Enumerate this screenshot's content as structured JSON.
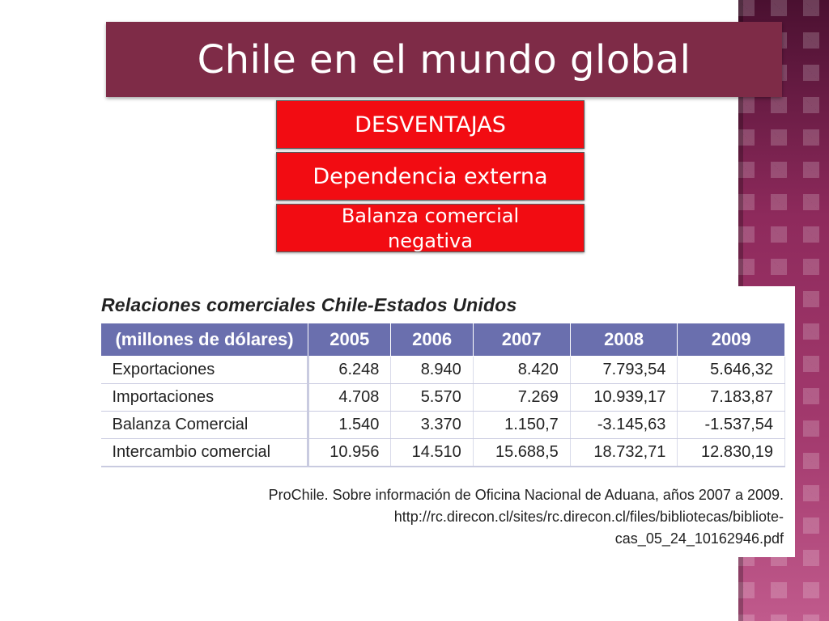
{
  "slide": {
    "title": "Chile en el mundo global",
    "boxes": [
      "DESVENTAJAS",
      "Dependencia externa"
    ],
    "box3_lines": [
      "Balanza comercial",
      "negativa"
    ]
  },
  "table": {
    "title": "Relaciones comerciales Chile-Estados Unidos",
    "headers": [
      "(millones de dólares)",
      "2005",
      "2006",
      "2007",
      "2008",
      "2009"
    ],
    "rows": [
      [
        "Exportaciones",
        "6.248",
        "8.940",
        "8.420",
        "7.793,54",
        "5.646,32"
      ],
      [
        "Importaciones",
        "4.708",
        "5.570",
        "7.269",
        "10.939,17",
        "7.183,87"
      ],
      [
        "Balanza Comercial",
        "1.540",
        "3.370",
        "1.150,7",
        "-3.145,63",
        "-1.537,54"
      ],
      [
        "Intercambio comercial",
        "10.956",
        "14.510",
        "15.688,5",
        "18.732,71",
        "12.830,19"
      ]
    ],
    "source_lines": [
      "ProChile. Sobre información de Oficina Nacional de Aduana, años 2007 a 2009.",
      "http://rc.direcon.cl/sites/rc.direcon.cl/files/bibliotecas/bibliote-",
      "cas_05_24_10162946.pdf"
    ]
  },
  "colors": {
    "title_bar": "#7e2b47",
    "red_box": "#f20c12",
    "table_header": "#6a6fae",
    "side_strip": "#8a2458"
  }
}
